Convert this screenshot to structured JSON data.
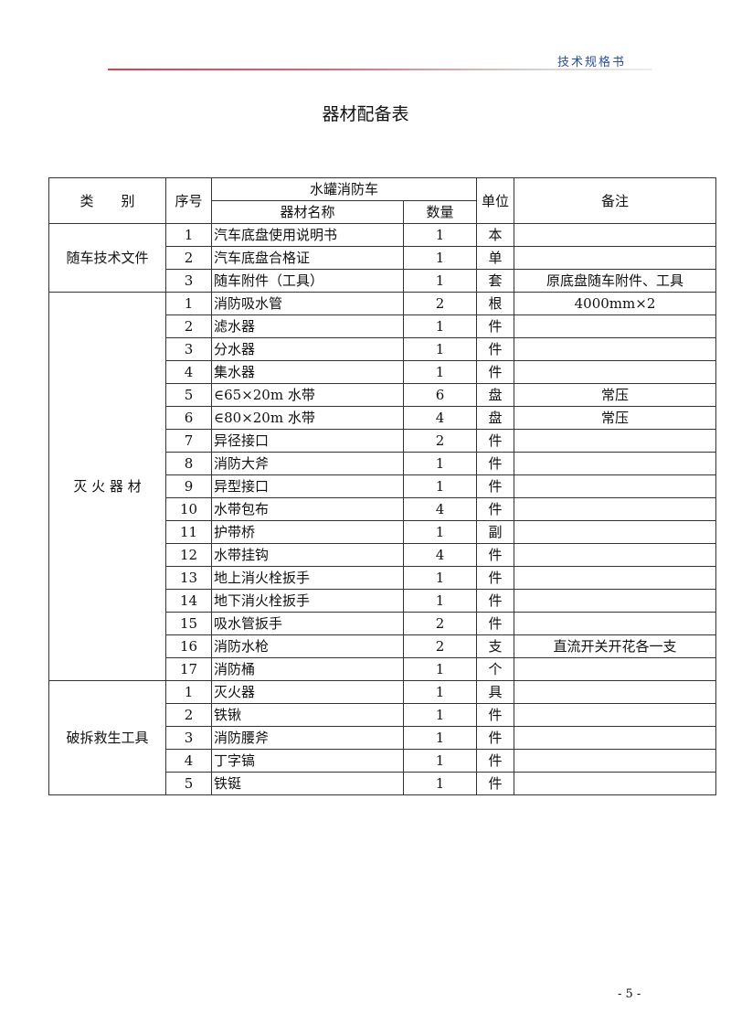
{
  "header": {
    "doc_label": "技术规格书",
    "accent_color": "#d8404f"
  },
  "title": "器材配备表",
  "table": {
    "col_category": "类　　别",
    "col_index": "序号",
    "col_group": "水罐消防车",
    "col_name": "器材名称",
    "col_qty": "数量",
    "col_unit": "单位",
    "col_note": "备注",
    "groups": [
      {
        "category": "随车技术文件",
        "rows": [
          [
            "1",
            "汽车底盘使用说明书",
            "1",
            "本",
            ""
          ],
          [
            "2",
            "汽车底盘合格证",
            "1",
            "单",
            ""
          ],
          [
            "3",
            "随车附件（工具）",
            "1",
            "套",
            "原底盘随车附件、工具"
          ]
        ]
      },
      {
        "category": "灭 火 器 材",
        "rows": [
          [
            "1",
            "消防吸水管",
            "2",
            "根",
            "4000mm×2"
          ],
          [
            "2",
            "滤水器",
            "1",
            "件",
            ""
          ],
          [
            "3",
            "分水器",
            "1",
            "件",
            ""
          ],
          [
            "4",
            "集水器",
            "1",
            "件",
            ""
          ],
          [
            "5",
            "∈65×20m 水带",
            "6",
            "盘",
            "常压"
          ],
          [
            "6",
            "∈80×20m 水带",
            "4",
            "盘",
            "常压"
          ],
          [
            "7",
            "异径接口",
            "2",
            "件",
            ""
          ],
          [
            "8",
            "消防大斧",
            "1",
            "件",
            ""
          ],
          [
            "9",
            "异型接口",
            "1",
            "件",
            ""
          ],
          [
            "10",
            "水带包布",
            "4",
            "件",
            ""
          ],
          [
            "11",
            "护带桥",
            "1",
            "副",
            ""
          ],
          [
            "12",
            "水带挂钩",
            "4",
            "件",
            ""
          ],
          [
            "13",
            "地上消火栓扳手",
            "1",
            "件",
            ""
          ],
          [
            "14",
            "地下消火栓扳手",
            "1",
            "件",
            ""
          ],
          [
            "15",
            "吸水管扳手",
            "2",
            "件",
            ""
          ],
          [
            "16",
            "消防水枪",
            "2",
            "支",
            "直流开关开花各一支"
          ],
          [
            "17",
            "消防桶",
            "1",
            "个",
            ""
          ]
        ]
      },
      {
        "category": "破拆救生工具",
        "rows": [
          [
            "1",
            "灭火器",
            "1",
            "具",
            ""
          ],
          [
            "2",
            "铁锹",
            "1",
            "件",
            ""
          ],
          [
            "3",
            "消防腰斧",
            "1",
            "件",
            ""
          ],
          [
            "4",
            "丁字镐",
            "1",
            "件",
            ""
          ],
          [
            "5",
            "铁铤",
            "1",
            "件",
            ""
          ]
        ]
      }
    ]
  },
  "footer": {
    "page": "- 5 -"
  }
}
